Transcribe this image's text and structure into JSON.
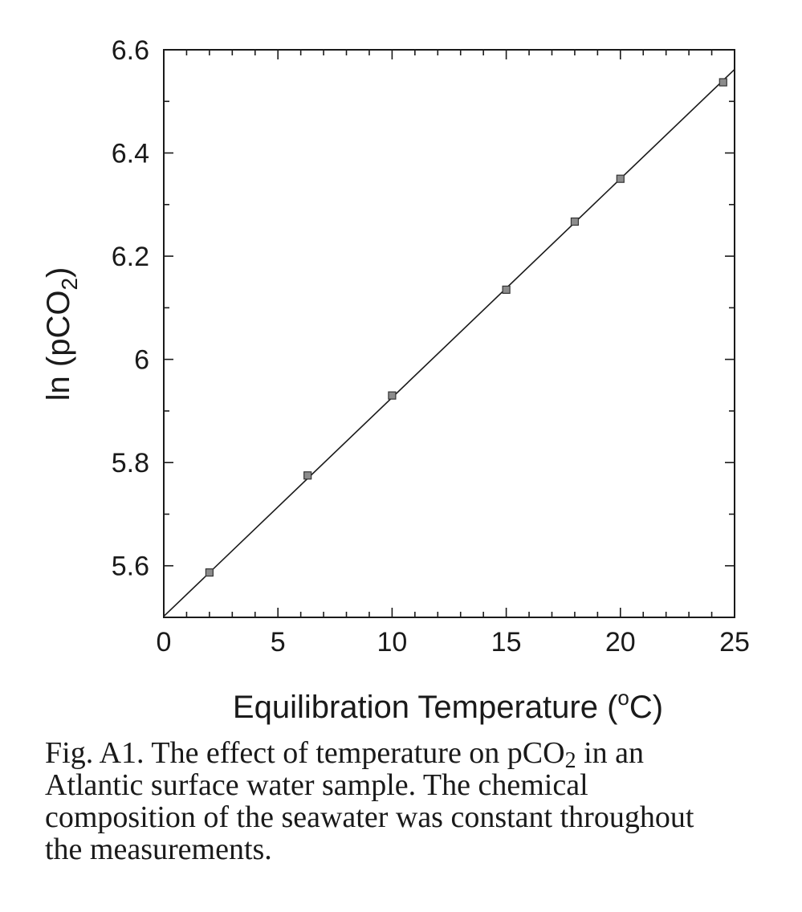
{
  "chart_data": {
    "type": "scatter",
    "title": "",
    "xlabel_text": "Equilibration Temperature (",
    "xlabel_unit_sup": "o",
    "xlabel_unit_tail": "C)",
    "ylabel_text": "ln (pCO",
    "ylabel_sub": "2",
    "ylabel_tail": ")",
    "xlim": [
      0,
      25
    ],
    "ylim": [
      5.5,
      6.6
    ],
    "xticks": [
      0,
      5,
      10,
      15,
      20,
      25
    ],
    "xtick_labels": [
      "0",
      "5",
      "10",
      "15",
      "20",
      "25"
    ],
    "yticks": [
      5.6,
      5.8,
      6.0,
      6.2,
      6.4,
      6.6
    ],
    "ytick_labels": [
      "5.6",
      "5.8",
      "6",
      "6.2",
      "6.4",
      "6.6"
    ],
    "grid": false,
    "series": [
      {
        "type": "scatter",
        "x": [
          2,
          6.3,
          10,
          15,
          18,
          20,
          24.5
        ],
        "y": [
          5.587,
          5.775,
          5.93,
          6.135,
          6.267,
          6.35,
          6.537
        ]
      }
    ],
    "fit_line": {
      "x": [
        0,
        25
      ],
      "y": [
        5.502,
        6.562
      ]
    }
  },
  "caption": {
    "line1_pre": "Fig. A1. The effect of temperature on pCO",
    "line1_sub": "2",
    "line1_post": " in an",
    "line2": "Atlantic surface water sample.  The chemical",
    "line3": "composition of the seawater was constant throughout",
    "line4": "the measurements."
  }
}
